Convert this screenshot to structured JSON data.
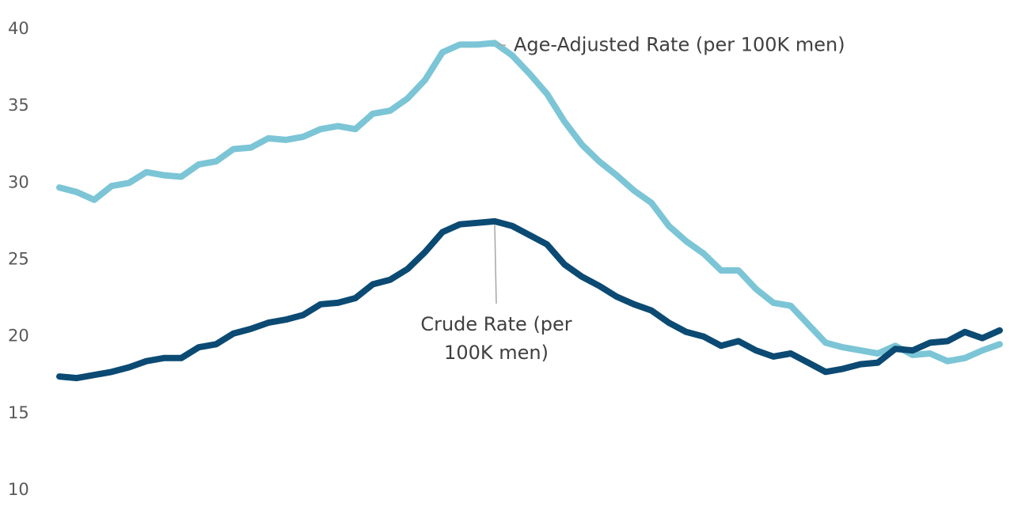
{
  "chart_data": {
    "type": "line",
    "title": "",
    "xlabel": "",
    "ylabel": "",
    "ylim": [
      10,
      40
    ],
    "yticks": [
      10,
      15,
      20,
      25,
      30,
      35,
      40
    ],
    "grid": false,
    "legend": "none",
    "x": [
      1,
      2,
      3,
      4,
      5,
      6,
      7,
      8,
      9,
      10,
      11,
      12,
      13,
      14,
      15,
      16,
      17,
      18,
      19,
      20,
      21,
      22,
      23,
      24,
      25,
      26,
      27,
      28,
      29,
      30,
      31,
      32,
      33,
      34,
      35,
      36,
      37,
      38,
      39,
      40,
      41,
      42,
      43,
      44,
      45,
      46,
      47,
      48,
      49,
      50,
      51,
      52,
      53,
      54,
      55
    ],
    "series": [
      {
        "name": "Age-Adjusted Rate (per 100K men)",
        "color": "#7bc5d6",
        "values": [
          29.6,
          29.3,
          28.8,
          29.7,
          29.9,
          30.6,
          30.4,
          30.3,
          31.1,
          31.3,
          32.1,
          32.2,
          32.8,
          32.7,
          32.9,
          33.4,
          33.6,
          33.4,
          34.4,
          34.6,
          35.4,
          36.6,
          38.4,
          38.9,
          38.9,
          39.0,
          38.2,
          37.0,
          35.7,
          33.9,
          32.4,
          31.3,
          30.4,
          29.4,
          28.6,
          27.1,
          26.1,
          25.3,
          24.2,
          24.2,
          23.0,
          22.1,
          21.9,
          20.7,
          19.5,
          19.2,
          19.0,
          18.8,
          19.3,
          18.7,
          18.8,
          18.3,
          18.5,
          19.0,
          19.4
        ]
      },
      {
        "name": "Crude Rate (per 100K men)",
        "color": "#0b4a73",
        "values": [
          17.3,
          17.2,
          17.4,
          17.6,
          17.9,
          18.3,
          18.5,
          18.5,
          19.2,
          19.4,
          20.1,
          20.4,
          20.8,
          21.0,
          21.3,
          22.0,
          22.1,
          22.4,
          23.3,
          23.6,
          24.3,
          25.4,
          26.7,
          27.2,
          27.3,
          27.4,
          27.1,
          26.5,
          25.9,
          24.6,
          23.8,
          23.2,
          22.5,
          22.0,
          21.6,
          20.8,
          20.2,
          19.9,
          19.3,
          19.6,
          19.0,
          18.6,
          18.8,
          18.2,
          17.6,
          17.8,
          18.1,
          18.2,
          19.1,
          19.0,
          19.5,
          19.6,
          20.2,
          19.8,
          20.3
        ]
      }
    ],
    "annotations": [
      {
        "series": 0,
        "point_index": 25,
        "text": [
          "Age-Adjusted Rate (per 100K men)"
        ]
      },
      {
        "series": 1,
        "point_index": 25,
        "text": [
          "Crude Rate (per",
          "100K men)"
        ]
      }
    ]
  }
}
